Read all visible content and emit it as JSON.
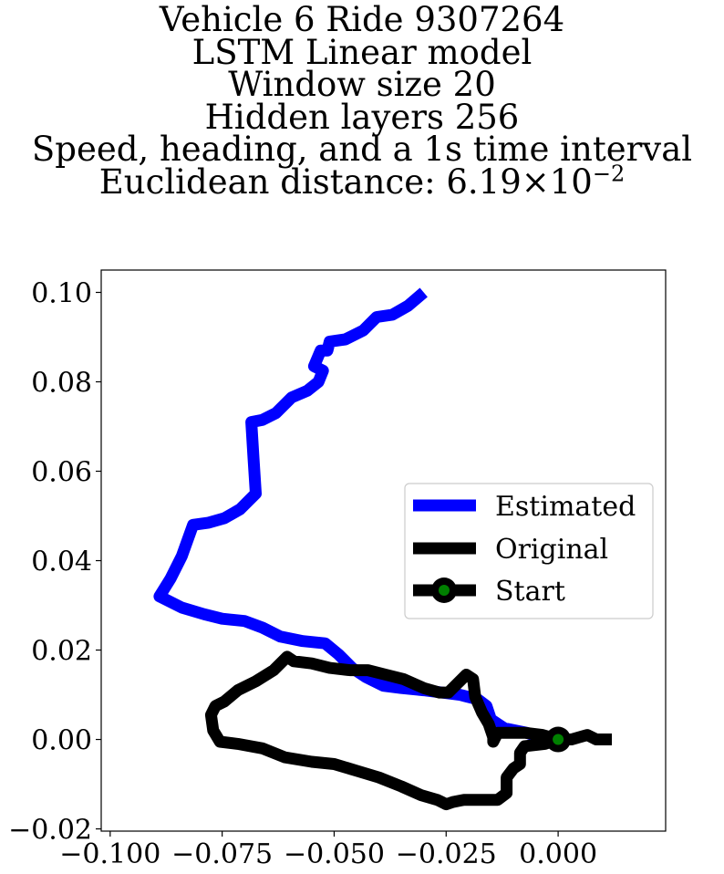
{
  "title": {
    "lines": [
      "Vehicle 6 Ride 9307264",
      "LSTM Linear model",
      "Window size 20",
      "Hidden layers 256",
      "Speed, heading, and a 1s time interval"
    ],
    "distance_label": "Euclidean distance: 6.19×10",
    "distance_exponent": "−2"
  },
  "chart_data": {
    "type": "line",
    "xlim": [
      -0.102,
      0.024
    ],
    "ylim": [
      -0.0205,
      0.105
    ],
    "x_ticks": [
      -0.1,
      -0.075,
      -0.05,
      -0.025,
      0.0
    ],
    "x_tick_labels": [
      "−0.100",
      "−0.075",
      "−0.050",
      "−0.025",
      "0.000"
    ],
    "y_ticks": [
      -0.02,
      0.0,
      0.02,
      0.04,
      0.06,
      0.08,
      0.1
    ],
    "y_tick_labels": [
      "−0.02",
      "0.00",
      "0.02",
      "0.04",
      "0.06",
      "0.08",
      "0.10"
    ],
    "grid": false,
    "legend_position": "center-right",
    "series": [
      {
        "name": "Estimated",
        "color": "#0000ff",
        "points": [
          [
            0.0,
            0.0
          ],
          [
            -0.003,
            0.0
          ],
          [
            -0.007,
            0.0015
          ],
          [
            -0.012,
            0.0025
          ],
          [
            -0.015,
            0.0045
          ],
          [
            -0.016,
            0.0075
          ],
          [
            -0.018,
            0.009
          ],
          [
            -0.022,
            0.01
          ],
          [
            -0.026,
            0.0105
          ],
          [
            -0.03,
            0.011
          ],
          [
            -0.035,
            0.0115
          ],
          [
            -0.039,
            0.012
          ],
          [
            -0.043,
            0.014
          ],
          [
            -0.046,
            0.016
          ],
          [
            -0.049,
            0.019
          ],
          [
            -0.052,
            0.0215
          ],
          [
            -0.057,
            0.022
          ],
          [
            -0.062,
            0.023
          ],
          [
            -0.066,
            0.025
          ],
          [
            -0.07,
            0.0265
          ],
          [
            -0.075,
            0.027
          ],
          [
            -0.079,
            0.028
          ],
          [
            -0.084,
            0.0295
          ],
          [
            -0.089,
            0.032
          ],
          [
            -0.0865,
            0.036
          ],
          [
            -0.084,
            0.041
          ],
          [
            -0.0815,
            0.048
          ],
          [
            -0.078,
            0.0485
          ],
          [
            -0.0745,
            0.0495
          ],
          [
            -0.071,
            0.0515
          ],
          [
            -0.0675,
            0.055
          ],
          [
            -0.068,
            0.063
          ],
          [
            -0.0685,
            0.071
          ],
          [
            -0.066,
            0.0715
          ],
          [
            -0.063,
            0.073
          ],
          [
            -0.0595,
            0.0765
          ],
          [
            -0.056,
            0.078
          ],
          [
            -0.0535,
            0.08
          ],
          [
            -0.0525,
            0.0825
          ],
          [
            -0.0545,
            0.0835
          ],
          [
            -0.053,
            0.087
          ],
          [
            -0.0515,
            0.087
          ],
          [
            -0.051,
            0.089
          ],
          [
            -0.0475,
            0.0895
          ],
          [
            -0.0435,
            0.0915
          ],
          [
            -0.0405,
            0.0945
          ],
          [
            -0.037,
            0.095
          ],
          [
            -0.0335,
            0.097
          ],
          [
            -0.03,
            0.1
          ]
        ]
      },
      {
        "name": "Original",
        "color": "#000000",
        "points": [
          [
            0.012,
            0.0
          ],
          [
            0.0085,
            0.0
          ],
          [
            0.0065,
            0.001
          ],
          [
            0.003,
            0.0
          ],
          [
            0.0,
            0.0
          ],
          [
            -0.003,
            -0.001
          ],
          [
            -0.0075,
            -0.0015
          ],
          [
            -0.0085,
            -0.003
          ],
          [
            -0.0085,
            -0.0055
          ],
          [
            -0.01,
            -0.0065
          ],
          [
            -0.0115,
            -0.0085
          ],
          [
            -0.0115,
            -0.012
          ],
          [
            -0.0135,
            -0.0135
          ],
          [
            -0.0175,
            -0.0135
          ],
          [
            -0.021,
            -0.0135
          ],
          [
            -0.0235,
            -0.014
          ],
          [
            -0.025,
            -0.0145
          ],
          [
            -0.026,
            -0.014
          ],
          [
            -0.027,
            -0.0135
          ],
          [
            -0.0305,
            -0.0125
          ],
          [
            -0.035,
            -0.0105
          ],
          [
            -0.04,
            -0.0085
          ],
          [
            -0.045,
            -0.007
          ],
          [
            -0.05,
            -0.0055
          ],
          [
            -0.055,
            -0.005
          ],
          [
            -0.061,
            -0.004
          ],
          [
            -0.066,
            -0.002
          ],
          [
            -0.0715,
            -0.001
          ],
          [
            -0.0755,
            -0.0005
          ],
          [
            -0.077,
            0.002
          ],
          [
            -0.0775,
            0.0055
          ],
          [
            -0.0765,
            0.0075
          ],
          [
            -0.0745,
            0.0085
          ],
          [
            -0.0715,
            0.011
          ],
          [
            -0.0675,
            0.013
          ],
          [
            -0.0635,
            0.0155
          ],
          [
            -0.0605,
            0.0185
          ],
          [
            -0.059,
            0.0175
          ],
          [
            -0.055,
            0.017
          ],
          [
            -0.051,
            0.016
          ],
          [
            -0.0465,
            0.0155
          ],
          [
            -0.0425,
            0.0155
          ],
          [
            -0.0385,
            0.0145
          ],
          [
            -0.0345,
            0.0135
          ],
          [
            -0.03,
            0.0115
          ],
          [
            -0.0265,
            0.0105
          ],
          [
            -0.0245,
            0.0105
          ],
          [
            -0.0225,
            0.0125
          ],
          [
            -0.0205,
            0.0145
          ],
          [
            -0.019,
            0.0135
          ],
          [
            -0.0185,
            0.0095
          ],
          [
            -0.017,
            0.006
          ],
          [
            -0.0155,
            0.0035
          ],
          [
            -0.0145,
            0.0005
          ],
          [
            -0.0145,
            -0.0005
          ],
          [
            -0.0135,
            0.0015
          ],
          [
            -0.0105,
            0.0015
          ],
          [
            -0.0075,
            0.0015
          ],
          [
            -0.0035,
            0.001
          ],
          [
            0.0,
            0.0
          ]
        ]
      }
    ],
    "start": {
      "name": "Start",
      "x": 0.0,
      "y": 0.0,
      "outer_color": "#000000",
      "inner_color": "#008000"
    }
  }
}
